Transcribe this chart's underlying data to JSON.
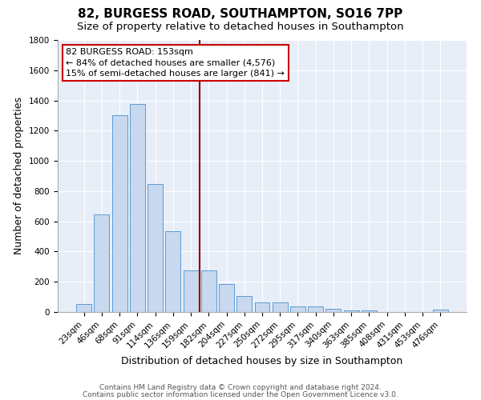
{
  "title": "82, BURGESS ROAD, SOUTHAMPTON, SO16 7PP",
  "subtitle": "Size of property relative to detached houses in Southampton",
  "xlabel": "Distribution of detached houses by size in Southampton",
  "ylabel": "Number of detached properties",
  "categories": [
    "23sqm",
    "46sqm",
    "68sqm",
    "91sqm",
    "114sqm",
    "136sqm",
    "159sqm",
    "182sqm",
    "204sqm",
    "227sqm",
    "250sqm",
    "272sqm",
    "295sqm",
    "317sqm",
    "340sqm",
    "363sqm",
    "385sqm",
    "408sqm",
    "431sqm",
    "453sqm",
    "476sqm"
  ],
  "values": [
    55,
    645,
    1305,
    1375,
    845,
    535,
    275,
    275,
    185,
    105,
    65,
    65,
    35,
    35,
    20,
    10,
    10,
    0,
    0,
    0,
    15
  ],
  "bar_color": "#c8d8ee",
  "bar_edge_color": "#5b9bd5",
  "background_color": "#e8eef8",
  "grid_color": "#ffffff",
  "vline_x": 6.5,
  "vline_color": "#8b0000",
  "annotation_line1": "82 BURGESS ROAD: 153sqm",
  "annotation_line2": "← 84% of detached houses are smaller (4,576)",
  "annotation_line3": "15% of semi-detached houses are larger (841) →",
  "annotation_box_color": "#ffffff",
  "annotation_box_edge_color": "#cc0000",
  "ylim": [
    0,
    1800
  ],
  "yticks": [
    0,
    200,
    400,
    600,
    800,
    1000,
    1200,
    1400,
    1600,
    1800
  ],
  "footer1": "Contains HM Land Registry data © Crown copyright and database right 2024.",
  "footer2": "Contains public sector information licensed under the Open Government Licence v3.0.",
  "title_fontsize": 11,
  "subtitle_fontsize": 9.5,
  "axis_label_fontsize": 9,
  "tick_fontsize": 7.5,
  "annotation_fontsize": 8,
  "footer_fontsize": 6.5
}
